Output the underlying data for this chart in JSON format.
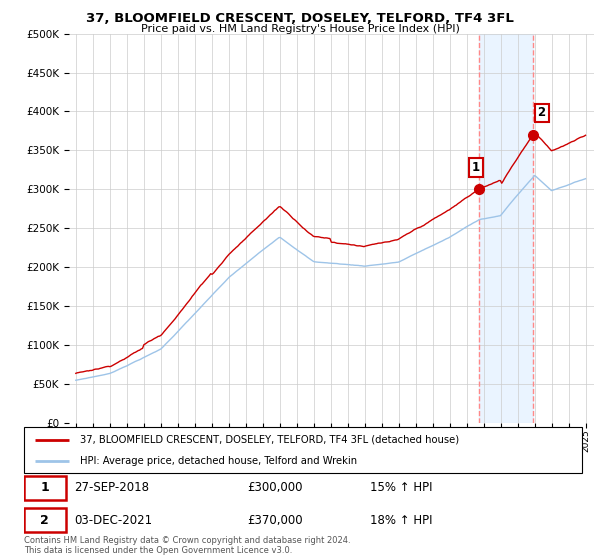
{
  "title": "37, BLOOMFIELD CRESCENT, DOSELEY, TELFORD, TF4 3FL",
  "subtitle": "Price paid vs. HM Land Registry's House Price Index (HPI)",
  "legend_line1": "37, BLOOMFIELD CRESCENT, DOSELEY, TELFORD, TF4 3FL (detached house)",
  "legend_line2": "HPI: Average price, detached house, Telford and Wrekin",
  "footnote": "Contains HM Land Registry data © Crown copyright and database right 2024.\nThis data is licensed under the Open Government Licence v3.0.",
  "sale1_date": "27-SEP-2018",
  "sale1_price": "£300,000",
  "sale1_hpi": "15% ↑ HPI",
  "sale2_date": "03-DEC-2021",
  "sale2_price": "£370,000",
  "sale2_hpi": "18% ↑ HPI",
  "sale1_year": 2018.75,
  "sale2_year": 2021.92,
  "sale1_value": 300000,
  "sale2_value": 370000,
  "hpi_color": "#9ec4e8",
  "price_color": "#cc0000",
  "span_color": "#ddeeff",
  "vline_color": "#ff8888",
  "background_color": "#ffffff",
  "grid_color": "#cccccc",
  "ylim": [
    0,
    500000
  ],
  "xlim_start": 1994.6,
  "xlim_end": 2025.5,
  "x_ticks": [
    1995,
    1996,
    1997,
    1998,
    1999,
    2000,
    2001,
    2002,
    2003,
    2004,
    2005,
    2006,
    2007,
    2008,
    2009,
    2010,
    2011,
    2012,
    2013,
    2014,
    2015,
    2016,
    2017,
    2018,
    2019,
    2020,
    2021,
    2022,
    2023,
    2024,
    2025
  ],
  "y_ticks": [
    0,
    50000,
    100000,
    150000,
    200000,
    250000,
    300000,
    350000,
    400000,
    450000,
    500000
  ]
}
